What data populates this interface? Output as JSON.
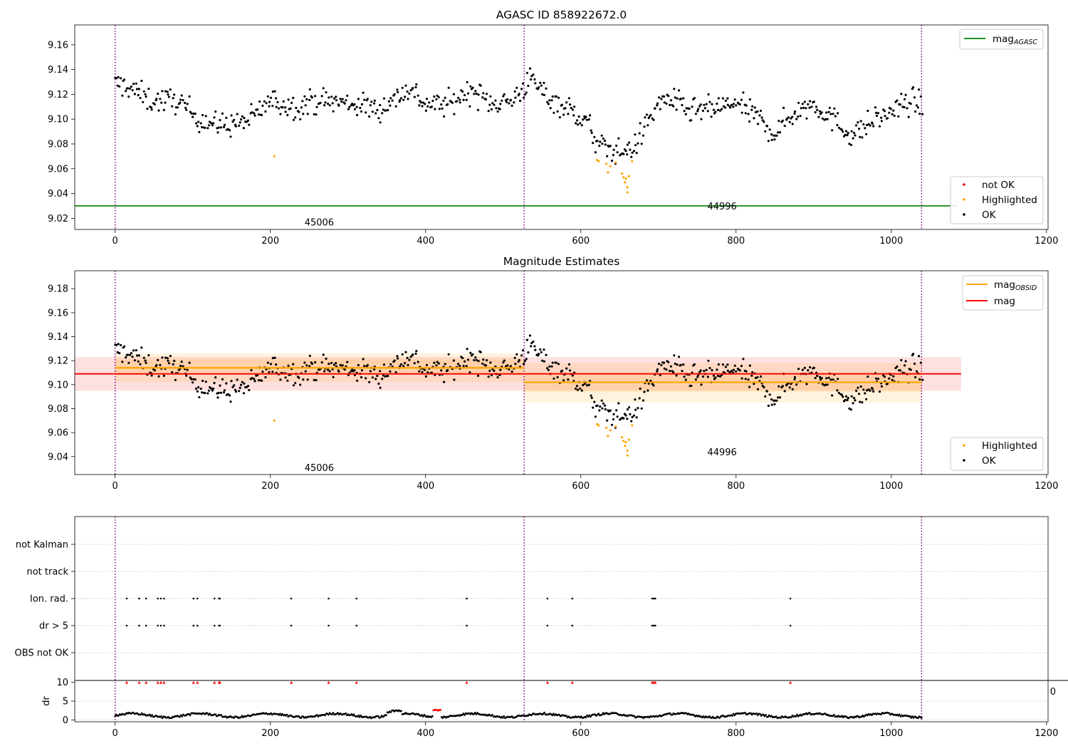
{
  "colors": {
    "ok": "#000000",
    "highlighted": "#ffa500",
    "not_ok": "#ff0000",
    "mag_agasc": "#008000",
    "mag": "#ff0000",
    "mag_obsid": "#ffa500",
    "obs_boundary": "#800080",
    "grid": "#b0b0b0"
  },
  "chart_data": [
    {
      "type": "scatter",
      "title": "AGASC ID 858922672.0",
      "xlim": [
        -52,
        1202
      ],
      "ylim": [
        9.011,
        9.176
      ],
      "xticks": [
        0,
        200,
        400,
        600,
        800,
        1000,
        1200
      ],
      "yticks": [
        9.02,
        9.04,
        9.06,
        9.08,
        9.1,
        9.12,
        9.14,
        9.16
      ],
      "ytick_labels": [
        "9.02",
        "9.04",
        "9.06",
        "9.08",
        "9.10",
        "9.12",
        "9.14",
        "9.16"
      ],
      "legend_lines": [
        {
          "name": "mag",
          "sub": "AGASC",
          "color": "#008000",
          "position": "upper right"
        }
      ],
      "legend_markers": [
        {
          "name": "not OK",
          "color": "#ff0000"
        },
        {
          "name": "Highlighted",
          "color": "#ffa500"
        },
        {
          "name": "OK",
          "color": "#000000"
        }
      ],
      "hlines": [
        {
          "name": "mag AGASC",
          "y": 9.03,
          "x0": -52,
          "x1": 1085,
          "color": "#008000"
        }
      ],
      "obs_boundaries": [
        0,
        527,
        1039
      ],
      "obs_labels": [
        {
          "text": "45006",
          "x": 263,
          "y": 9.017
        },
        {
          "text": "44996",
          "x": 782,
          "y": 9.03
        }
      ],
      "highlighted_points": [
        [
          205,
          9.07
        ],
        [
          621,
          9.067
        ],
        [
          623,
          9.066
        ],
        [
          633,
          9.064
        ],
        [
          635,
          9.057
        ],
        [
          638,
          9.062
        ],
        [
          645,
          9.065
        ],
        [
          653,
          9.056
        ],
        [
          655,
          9.053
        ],
        [
          657,
          9.049
        ],
        [
          658,
          9.052
        ],
        [
          660,
          9.045
        ],
        [
          660,
          9.041
        ],
        [
          662,
          9.054
        ],
        [
          666,
          9.066
        ]
      ],
      "trend": {
        "knots": [
          [
            0,
            9.128
          ],
          [
            15,
            9.127
          ],
          [
            45,
            9.115
          ],
          [
            80,
            9.115
          ],
          [
            105,
            9.102
          ],
          [
            130,
            9.095
          ],
          [
            160,
            9.097
          ],
          [
            175,
            9.1
          ],
          [
            200,
            9.115
          ],
          [
            230,
            9.11
          ],
          [
            260,
            9.115
          ],
          [
            300,
            9.113
          ],
          [
            340,
            9.108
          ],
          [
            380,
            9.125
          ],
          [
            400,
            9.112
          ],
          [
            430,
            9.112
          ],
          [
            460,
            9.124
          ],
          [
            480,
            9.114
          ],
          [
            510,
            9.114
          ],
          [
            535,
            9.132
          ],
          [
            560,
            9.117
          ],
          [
            590,
            9.106
          ],
          [
            610,
            9.096
          ],
          [
            620,
            9.08
          ],
          [
            650,
            9.073
          ],
          [
            670,
            9.078
          ],
          [
            690,
            9.103
          ],
          [
            710,
            9.118
          ],
          [
            740,
            9.106
          ],
          [
            770,
            9.108
          ],
          [
            800,
            9.113
          ],
          [
            830,
            9.1
          ],
          [
            850,
            9.088
          ],
          [
            870,
            9.103
          ],
          [
            900,
            9.113
          ],
          [
            930,
            9.097
          ],
          [
            950,
            9.087
          ],
          [
            980,
            9.1
          ],
          [
            1000,
            9.106
          ],
          [
            1030,
            9.116
          ],
          [
            1040,
            9.108
          ]
        ],
        "noise": 0.0072,
        "n": 700,
        "x_start": 0,
        "x_end": 1040
      }
    },
    {
      "type": "scatter",
      "title": "Magnitude Estimates",
      "xlim": [
        -52,
        1202
      ],
      "ylim": [
        9.025,
        9.195
      ],
      "xticks": [
        0,
        200,
        400,
        600,
        800,
        1000,
        1200
      ],
      "yticks": [
        9.04,
        9.06,
        9.08,
        9.1,
        9.12,
        9.14,
        9.16,
        9.18
      ],
      "ytick_labels": [
        "9.04",
        "9.06",
        "9.08",
        "9.10",
        "9.12",
        "9.14",
        "9.16",
        "9.18"
      ],
      "legend_lines": [
        {
          "name": "mag",
          "sub": "OBSID",
          "color": "#ffa500",
          "position": "upper right"
        },
        {
          "name": "mag",
          "sub": "",
          "color": "#ff0000",
          "position": "upper right"
        }
      ],
      "legend_markers": [
        {
          "name": "Highlighted",
          "color": "#ffa500"
        },
        {
          "name": "OK",
          "color": "#000000"
        }
      ],
      "mag": {
        "value": 9.109,
        "band": [
          9.095,
          9.123
        ],
        "x0": -52,
        "x1": 1090
      },
      "mag_obsid": [
        {
          "x0": 0,
          "x1": 527,
          "value": 9.114,
          "band": [
            9.102,
            9.126
          ],
          "inner_band": [
            9.108,
            9.121
          ]
        },
        {
          "x0": 527,
          "x1": 1039,
          "value": 9.102,
          "band": [
            9.085,
            9.118
          ],
          "inner_band": [
            9.094,
            9.11
          ]
        }
      ],
      "obs_boundaries": [
        0,
        527,
        1039
      ],
      "obs_labels": [
        {
          "text": "45006",
          "x": 263,
          "y": 9.031
        },
        {
          "text": "44996",
          "x": 782,
          "y": 9.044
        }
      ]
    },
    {
      "type": "scatter",
      "title": "",
      "xlim": [
        -52,
        1202
      ],
      "xticks": [
        0,
        200,
        400,
        600,
        800,
        1000,
        1200
      ],
      "flag_rows": [
        "not Kalman",
        "not track",
        "Ion. rad.",
        "dr > 5",
        "OBS not OK"
      ],
      "flag_events": {
        "Ion. rad.": [
          15,
          31,
          40,
          55,
          59,
          63,
          101,
          106,
          128,
          134,
          135,
          227,
          275,
          311,
          453,
          557,
          589,
          692,
          694,
          696,
          870
        ],
        "dr > 5": [
          15,
          31,
          40,
          55,
          59,
          63,
          101,
          106,
          128,
          134,
          135,
          227,
          275,
          311,
          453,
          557,
          589,
          692,
          694,
          696,
          870
        ]
      },
      "dr": {
        "ylabel": "dr",
        "ylim": [
          -0.5,
          10.5
        ],
        "yticks": [
          0,
          5,
          10
        ],
        "ytick_labels": [
          "0",
          "5",
          "10"
        ],
        "clipped_at": 10,
        "mean": 1.2,
        "spread": 0.5,
        "red_segment": [
          410,
          420
        ],
        "n": 700
      },
      "obs_boundaries": [
        0,
        527,
        1039
      ],
      "right_edge_label": "0"
    }
  ]
}
